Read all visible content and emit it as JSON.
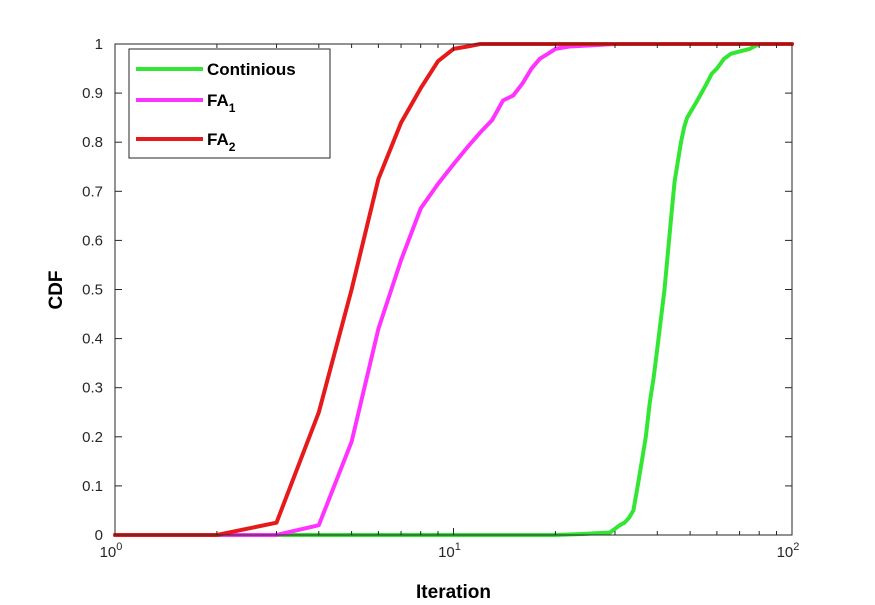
{
  "chart_data": {
    "type": "line",
    "x_scale": "log",
    "xlabel": "Iteration",
    "ylabel": "CDF",
    "xlim": [
      1,
      100
    ],
    "ylim": [
      0,
      1
    ],
    "grid": false,
    "legend_position": "top-left",
    "x_ticks": [
      {
        "value": 1,
        "base": "10",
        "exp": "0"
      },
      {
        "value": 10,
        "base": "10",
        "exp": "1"
      },
      {
        "value": 100,
        "base": "10",
        "exp": "2"
      }
    ],
    "y_ticks": [
      {
        "value": 0,
        "label": "0"
      },
      {
        "value": 0.1,
        "label": "0.1"
      },
      {
        "value": 0.2,
        "label": "0.2"
      },
      {
        "value": 0.3,
        "label": "0.3"
      },
      {
        "value": 0.4,
        "label": "0.4"
      },
      {
        "value": 0.5,
        "label": "0.5"
      },
      {
        "value": 0.6,
        "label": "0.6"
      },
      {
        "value": 0.7,
        "label": "0.7"
      },
      {
        "value": 0.8,
        "label": "0.8"
      },
      {
        "value": 0.9,
        "label": "0.9"
      },
      {
        "value": 1,
        "label": "1"
      }
    ],
    "series": [
      {
        "name": "Continious",
        "name_main": "Continious",
        "name_sub": "",
        "color": "#33e633",
        "x": [
          1,
          20,
          24,
          29,
          31,
          32,
          33,
          34,
          35,
          36,
          37,
          38,
          39,
          40,
          42,
          44,
          45,
          46,
          47,
          48,
          49,
          50,
          51,
          52,
          54,
          56,
          58,
          60,
          63,
          66,
          70,
          75,
          80,
          100
        ],
        "y": [
          0,
          0,
          0.002,
          0.005,
          0.02,
          0.025,
          0.035,
          0.05,
          0.1,
          0.15,
          0.2,
          0.27,
          0.32,
          0.38,
          0.5,
          0.65,
          0.72,
          0.76,
          0.8,
          0.83,
          0.85,
          0.86,
          0.87,
          0.88,
          0.9,
          0.92,
          0.94,
          0.95,
          0.97,
          0.98,
          0.985,
          0.99,
          1,
          1
        ]
      },
      {
        "name": "FA1",
        "name_main": "FA",
        "name_sub": "1",
        "color": "#ff33ff",
        "x": [
          1,
          3,
          4,
          5,
          6,
          7,
          8,
          9,
          10,
          11,
          12,
          13,
          14,
          15,
          16,
          17,
          18,
          19,
          20,
          22,
          25,
          30,
          100
        ],
        "y": [
          0,
          0,
          0.02,
          0.19,
          0.42,
          0.56,
          0.665,
          0.715,
          0.755,
          0.79,
          0.82,
          0.845,
          0.885,
          0.895,
          0.92,
          0.95,
          0.97,
          0.98,
          0.99,
          0.995,
          0.997,
          1,
          1
        ]
      },
      {
        "name": "FA2",
        "name_main": "FA",
        "name_sub": "2",
        "color": "#e61a1a",
        "x": [
          1,
          2,
          3,
          4,
          5,
          6,
          7,
          8,
          9,
          10,
          11,
          12,
          100
        ],
        "y": [
          0,
          0,
          0.025,
          0.25,
          0.5,
          0.725,
          0.84,
          0.91,
          0.965,
          0.99,
          0.995,
          1,
          1
        ]
      }
    ]
  }
}
